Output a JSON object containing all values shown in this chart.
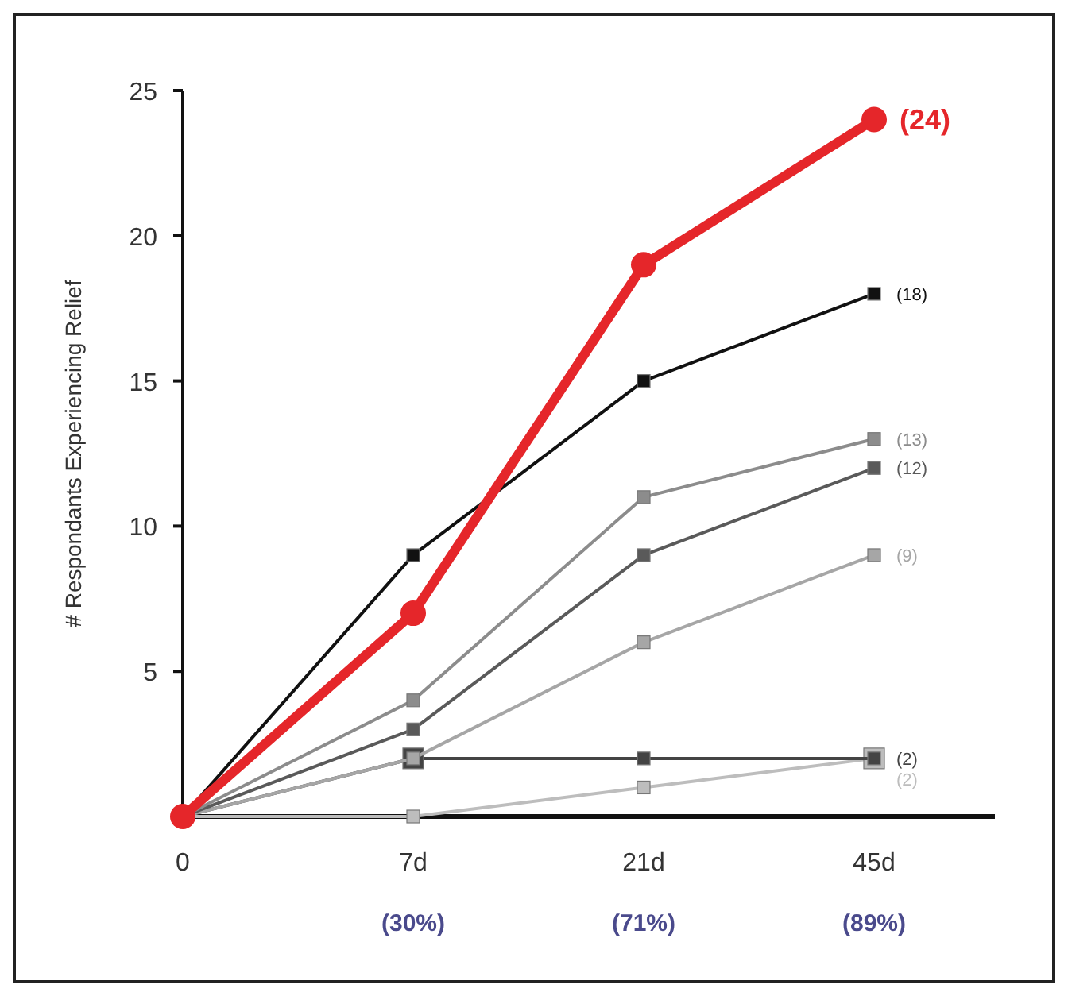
{
  "chart_data": {
    "type": "line",
    "ylabel": "# Respondants Experiencing Relief",
    "categories": [
      "0",
      "7d",
      "21d",
      "45d"
    ],
    "ylim": [
      0,
      25
    ],
    "yticks": [
      5,
      10,
      15,
      20,
      25
    ],
    "grid": false,
    "line_style": "solid",
    "series": [
      {
        "color": "#bdbdbd",
        "marker": "square",
        "values": [
          0,
          0,
          1,
          2
        ],
        "value_labels": [
          null,
          null,
          null,
          "(2)"
        ]
      },
      {
        "color": "#444444",
        "marker": "square",
        "values": [
          0,
          2,
          2,
          2
        ],
        "value_labels": [
          null,
          null,
          null,
          "(2)"
        ]
      },
      {
        "color": "#a6a6a6",
        "marker": "square",
        "values": [
          0,
          2,
          6,
          9
        ],
        "value_labels": [
          null,
          null,
          null,
          "(9)"
        ]
      },
      {
        "color": "#5a5a5a",
        "marker": "square",
        "values": [
          0,
          3,
          9,
          12
        ],
        "value_labels": [
          null,
          null,
          null,
          "(12)"
        ]
      },
      {
        "color": "#8c8c8c",
        "marker": "square",
        "values": [
          0,
          4,
          11,
          13
        ],
        "value_labels": [
          null,
          null,
          null,
          "(13)"
        ]
      },
      {
        "color": "#111111",
        "marker": "square",
        "values": [
          0,
          9,
          15,
          18
        ],
        "value_labels": [
          null,
          null,
          null,
          "(18)"
        ]
      },
      {
        "color": "#e5262a",
        "marker": "circle",
        "values": [
          0,
          7,
          19,
          24
        ],
        "value_labels": [
          null,
          null,
          null,
          "(24)"
        ]
      }
    ],
    "annotations": [
      "(30%)",
      "(71%)",
      "(89%)"
    ]
  }
}
